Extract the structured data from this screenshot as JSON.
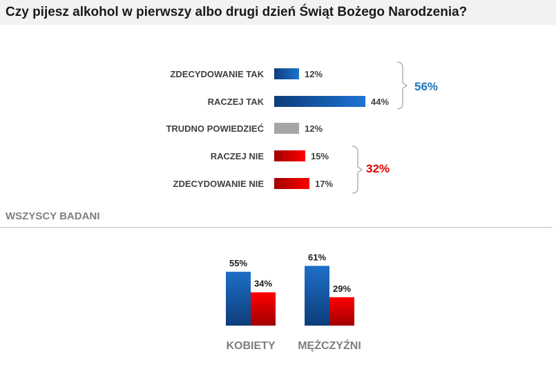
{
  "title": "Czy pijesz alkohol w pierwszy albo drugi dzień Świąt Bożego Narodzenia?",
  "section_label": "WSZYSCY BADANI",
  "colors": {
    "blue": "#1e6fc8",
    "blue_dark": "#0d3d7a",
    "red": "#ff0000",
    "red_dark": "#a00000",
    "gray": "#a6a6a6",
    "accent_blue_text": "#1e73be",
    "accent_red_text": "#e00000"
  },
  "chart_data": [
    {
      "type": "bar",
      "orientation": "horizontal",
      "title": "",
      "categories": [
        "ZDECYDOWANIE TAK",
        "RACZEJ TAK",
        "TRUDNO POWIEDZIEĆ",
        "RACZEJ NIE",
        "ZDECYDOWANIE NIE"
      ],
      "values": [
        12,
        44,
        12,
        15,
        17
      ],
      "labels": [
        "12%",
        "44%",
        "12%",
        "15%",
        "17%"
      ],
      "bar_colors": [
        "blue",
        "blue",
        "gray",
        "red",
        "red"
      ],
      "groups": [
        {
          "label": "56%",
          "members": [
            "ZDECYDOWANIE TAK",
            "RACZEJ TAK"
          ],
          "color": "blue"
        },
        {
          "label": "32%",
          "members": [
            "RACZEJ NIE",
            "ZDECYDOWANIE NIE"
          ],
          "color": "red"
        }
      ],
      "grid": false
    },
    {
      "type": "bar",
      "orientation": "vertical",
      "title": "",
      "categories": [
        "KOBIETY",
        "MĘŻCZYŹNI"
      ],
      "series": [
        {
          "values": [
            55,
            61
          ],
          "labels": [
            "55%",
            "61%"
          ],
          "color": "blue"
        },
        {
          "values": [
            34,
            29
          ],
          "labels": [
            "34%",
            "29%"
          ],
          "color": "red"
        }
      ],
      "grid": false
    }
  ]
}
